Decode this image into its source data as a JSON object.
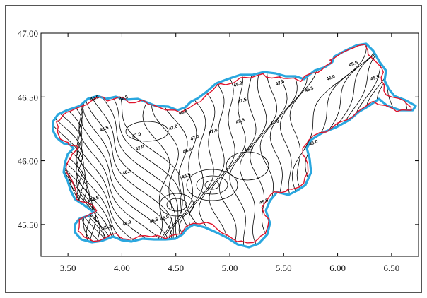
{
  "chart_data": {
    "type": "contour",
    "xlim": [
      3.25,
      6.75
    ],
    "ylim": [
      45.25,
      47.0
    ],
    "x_ticks": [
      "3.50",
      "4.00",
      "4.50",
      "5.00",
      "5.50",
      "6.00",
      "6.50"
    ],
    "y_ticks": [
      "47.00",
      "46.50",
      "46.00",
      "45.50"
    ],
    "x_tick_values": [
      3.5,
      4.0,
      4.5,
      5.0,
      5.5,
      6.0,
      6.5
    ],
    "y_tick_values": [
      47.0,
      46.5,
      46.0,
      45.5
    ],
    "contour_labels": [
      {
        "text": "45.5",
        "x": 3.75,
        "y": 46.48
      },
      {
        "text": "46.5",
        "x": 4.02,
        "y": 46.48
      },
      {
        "text": "46.5",
        "x": 3.84,
        "y": 46.24
      },
      {
        "text": "47.0",
        "x": 4.14,
        "y": 46.19
      },
      {
        "text": "47.0",
        "x": 4.17,
        "y": 46.09
      },
      {
        "text": "46.5",
        "x": 4.57,
        "y": 46.37
      },
      {
        "text": "47.0",
        "x": 4.48,
        "y": 46.25
      },
      {
        "text": "47.0",
        "x": 4.68,
        "y": 46.17
      },
      {
        "text": "47.5",
        "x": 4.85,
        "y": 46.22
      },
      {
        "text": "48.0",
        "x": 5.08,
        "y": 46.59
      },
      {
        "text": "47.5",
        "x": 5.12,
        "y": 46.46
      },
      {
        "text": "47.5",
        "x": 5.1,
        "y": 46.3
      },
      {
        "text": "47.0",
        "x": 5.47,
        "y": 46.6
      },
      {
        "text": "47.0",
        "x": 5.42,
        "y": 46.29
      },
      {
        "text": "46.5",
        "x": 5.74,
        "y": 46.55
      },
      {
        "text": "46.0",
        "x": 5.94,
        "y": 46.64
      },
      {
        "text": "45.5",
        "x": 6.15,
        "y": 46.75
      },
      {
        "text": "45.5",
        "x": 6.35,
        "y": 46.64
      },
      {
        "text": "45.0",
        "x": 5.78,
        "y": 46.13
      },
      {
        "text": "46.5",
        "x": 4.61,
        "y": 46.07
      },
      {
        "text": "46.5",
        "x": 5.18,
        "y": 46.08
      },
      {
        "text": "46.5",
        "x": 4.05,
        "y": 45.9
      },
      {
        "text": "46.5",
        "x": 4.6,
        "y": 45.87
      },
      {
        "text": "45.5",
        "x": 3.75,
        "y": 45.69
      },
      {
        "text": "46.0",
        "x": 4.05,
        "y": 45.5
      },
      {
        "text": "45.5",
        "x": 3.87,
        "y": 45.47
      },
      {
        "text": "45.5",
        "x": 4.3,
        "y": 45.52
      },
      {
        "text": "46.0",
        "x": 4.4,
        "y": 45.54
      },
      {
        "text": "45.5",
        "x": 5.32,
        "y": 45.67
      }
    ],
    "colors": {
      "outline_outer": "#2aa7df",
      "outline_inner": "#e0142c",
      "contours": "#000000",
      "axis": "#000000"
    },
    "contour_count": 60
  }
}
